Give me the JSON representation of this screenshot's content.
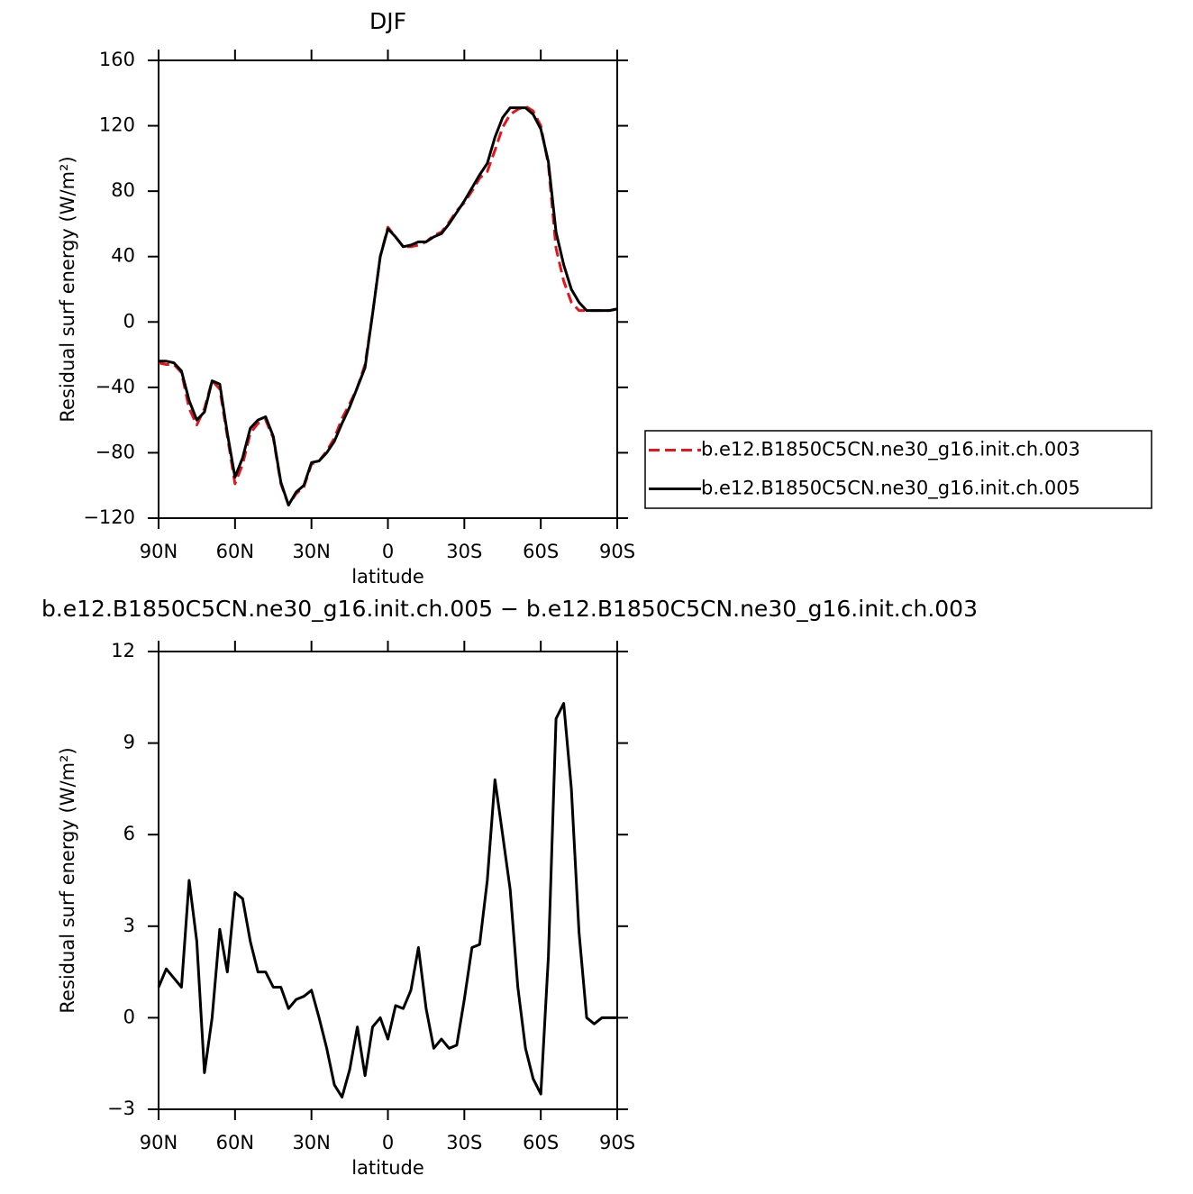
{
  "chart_data": [
    {
      "type": "line",
      "title": "DJF",
      "xlabel": "latitude",
      "ylabel": "Residual surf energy (W/m²)",
      "x": [
        90,
        87,
        84,
        81,
        78,
        75,
        72,
        69,
        66,
        63,
        60,
        57,
        54,
        51,
        48,
        45,
        42,
        39,
        36,
        33,
        30,
        27,
        24,
        21,
        18,
        15,
        12,
        9,
        6,
        3,
        0,
        -3,
        -6,
        -9,
        -12,
        -15,
        -18,
        -21,
        -24,
        -27,
        -30,
        -33,
        -36,
        -39,
        -42,
        -45,
        -48,
        -51,
        -54,
        -57,
        -60,
        -63,
        -66,
        -69,
        -72,
        -75,
        -78,
        -81,
        -84,
        -87,
        -90
      ],
      "xlim": [
        90,
        -90
      ],
      "xticks": [
        {
          "value": 90,
          "label": "90N"
        },
        {
          "value": 60,
          "label": "60N"
        },
        {
          "value": 30,
          "label": "30N"
        },
        0,
        {
          "value": -30,
          "label": "30S"
        },
        {
          "value": -60,
          "label": "60S"
        },
        {
          "value": -90,
          "label": "90S"
        }
      ],
      "ylim": [
        -120,
        160
      ],
      "yticks": [
        {
          "value": -120,
          "label": "−120"
        },
        {
          "value": -80,
          "label": "−80"
        },
        {
          "value": -40,
          "label": "−40"
        },
        0,
        40,
        80,
        120,
        160
      ],
      "legend": "right",
      "series": [
        {
          "name": "b.e12.B1850C5CN.ne30_g16.init.ch.003",
          "color": "#e8141c",
          "line_style": "dashed",
          "values": [
            -25,
            -26,
            -26,
            -31,
            -53,
            -63,
            -53,
            -36,
            -41,
            -70,
            -99,
            -87,
            -68,
            -62,
            -60,
            -71,
            -99,
            -112,
            -105,
            -101,
            -87,
            -85,
            -79,
            -71,
            -59,
            -50,
            -40,
            -26,
            5,
            40,
            58,
            52,
            46,
            46,
            47,
            49,
            53,
            55,
            61,
            68,
            73,
            80,
            88,
            92,
            105,
            119,
            127,
            130,
            132,
            129,
            120,
            96,
            45,
            25,
            12,
            7,
            7,
            7,
            7,
            7,
            8
          ]
        },
        {
          "name": "b.e12.B1850C5CN.ne30_g16.init.ch.005",
          "color": "#000000",
          "line_style": "solid",
          "values": [
            -24,
            -24,
            -25,
            -30,
            -48,
            -60,
            -55,
            -36,
            -38,
            -68,
            -95,
            -83,
            -65,
            -60,
            -58,
            -70,
            -98,
            -112,
            -104,
            -100,
            -86,
            -85,
            -80,
            -73,
            -62,
            -52,
            -40,
            -28,
            5,
            40,
            57,
            52,
            46,
            47,
            49,
            49,
            52,
            54,
            60,
            67,
            74,
            82,
            90,
            97,
            113,
            125,
            131,
            131,
            131,
            127,
            118,
            98,
            55,
            35,
            20,
            12,
            7,
            7,
            7,
            7,
            8
          ]
        }
      ]
    },
    {
      "type": "line",
      "title": "b.e12.B1850C5CN.ne30_g16.init.ch.005 − b.e12.B1850C5CN.ne30_g16.init.ch.003",
      "xlabel": "latitude",
      "ylabel": "Residual surf energy (W/m²)",
      "x": [
        90,
        87,
        84,
        81,
        78,
        75,
        72,
        69,
        66,
        63,
        60,
        57,
        54,
        51,
        48,
        45,
        42,
        39,
        36,
        33,
        30,
        27,
        24,
        21,
        18,
        15,
        12,
        9,
        6,
        3,
        0,
        -3,
        -6,
        -9,
        -12,
        -15,
        -18,
        -21,
        -24,
        -27,
        -30,
        -33,
        -36,
        -39,
        -42,
        -45,
        -48,
        -51,
        -54,
        -57,
        -60,
        -63,
        -66,
        -69,
        -72,
        -75,
        -78,
        -81,
        -84,
        -87,
        -90
      ],
      "xlim": [
        90,
        -90
      ],
      "xticks": [
        {
          "value": 90,
          "label": "90N"
        },
        {
          "value": 60,
          "label": "60N"
        },
        {
          "value": 30,
          "label": "30N"
        },
        0,
        {
          "value": -30,
          "label": "30S"
        },
        {
          "value": -60,
          "label": "60S"
        },
        {
          "value": -90,
          "label": "90S"
        }
      ],
      "ylim": [
        -3,
        12
      ],
      "yticks": [
        {
          "value": -3,
          "label": "−3"
        },
        0,
        3,
        6,
        9,
        12
      ],
      "series": [
        {
          "color": "#000000",
          "line_style": "solid",
          "values": [
            1.0,
            1.6,
            1.3,
            1.0,
            4.5,
            2.5,
            -1.8,
            0.0,
            2.9,
            1.5,
            4.1,
            3.9,
            2.5,
            1.5,
            1.5,
            1.0,
            1.0,
            0.3,
            0.6,
            0.7,
            0.9,
            0.0,
            -1.0,
            -2.2,
            -2.6,
            -1.7,
            -0.3,
            -1.9,
            -0.3,
            0.0,
            -0.7,
            0.4,
            0.3,
            0.9,
            2.3,
            0.3,
            -1.0,
            -0.7,
            -1.0,
            -0.9,
            0.6,
            2.3,
            2.4,
            4.5,
            7.8,
            6.0,
            4.2,
            1.0,
            -1.0,
            -2.0,
            -2.5,
            2.0,
            9.8,
            10.3,
            7.5,
            2.8,
            0.0,
            -0.2,
            0.0,
            0.0,
            0.0
          ]
        }
      ]
    }
  ]
}
